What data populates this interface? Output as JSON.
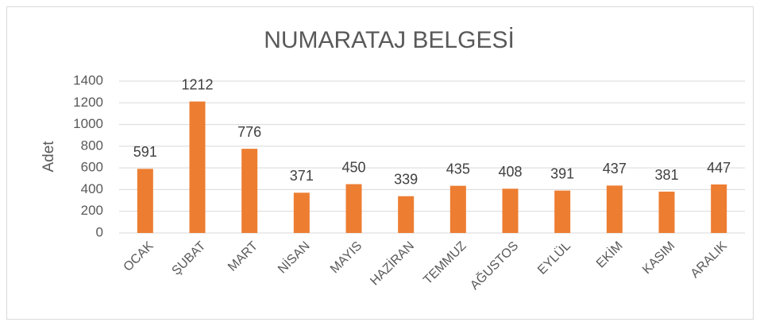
{
  "chart_data": {
    "type": "bar",
    "title": "NUMARATAJ BELGESİ",
    "y_label": "Adet",
    "categories": [
      "OCAK",
      "ŞUBAT",
      "MART",
      "NİSAN",
      "MAYIS",
      "HAZİRAN",
      "TEMMUZ",
      "AĞUSTOS",
      "EYLÜL",
      "EKİM",
      "KASIM",
      "ARALIK"
    ],
    "values": [
      591,
      1212,
      776,
      371,
      450,
      339,
      435,
      408,
      391,
      437,
      381,
      447
    ],
    "color": "#ed7d31",
    "ylim": [
      0,
      1400
    ],
    "yticks": [
      0,
      200,
      400,
      600,
      800,
      1000,
      1200,
      1400
    ],
    "grid": true
  }
}
